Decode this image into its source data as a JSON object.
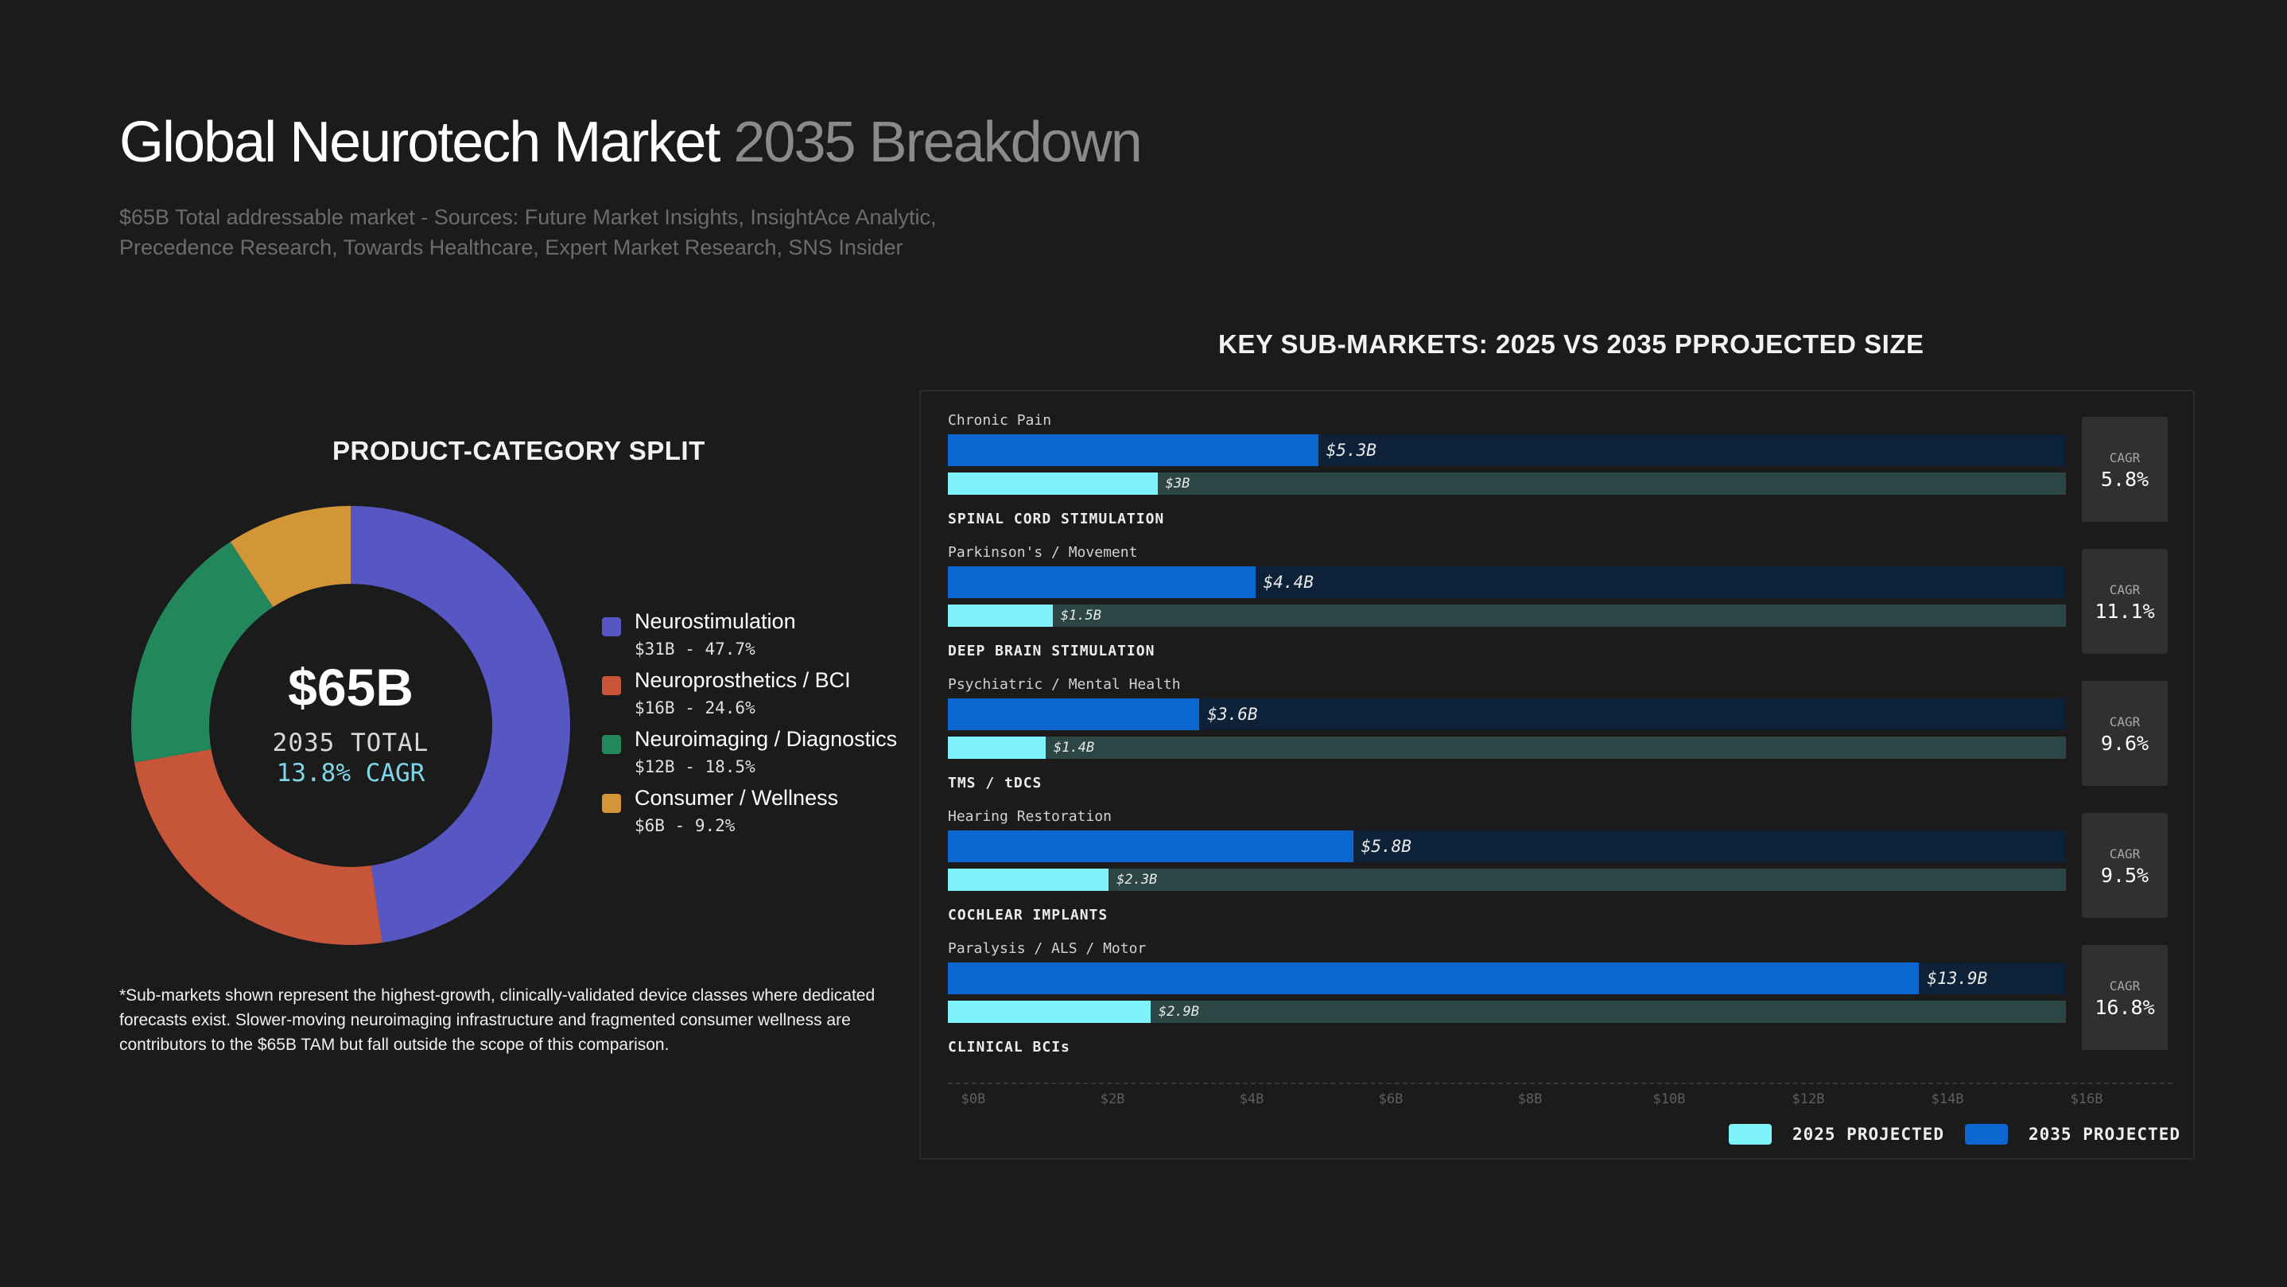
{
  "header": {
    "title_main": "Global Neurotech Market",
    "title_sub": "2035 Breakdown",
    "subtitle": "$65B Total addressable market - Sources: Future Market Insights, InsightAce Analytic, Precedence Research, Towards Healthcare, Expert Market Research, SNS Insider"
  },
  "split": {
    "heading": "PRODUCT-CATEGORY SPLIT",
    "center_value": "$65B",
    "center_label": "2035 TOTAL",
    "center_cagr": "13.8% CAGR"
  },
  "bars": {
    "heading": "KEY SUB-MARKETS: 2025 VS 2035 PPROJECTED SIZE",
    "cagr_label": "CAGR"
  },
  "footnote": "*Sub-markets shown represent the highest-growth, clinically-validated device classes where dedicated forecasts exist. Slower-moving neuroimaging infrastructure and fragmented consumer wellness are contributors to the $65B TAM but fall outside the scope of this comparison.",
  "colors": {
    "neurostimulation": "#5757c4",
    "neuroprosthetics": "#c7553a",
    "neuroimaging": "#23875c",
    "consumer": "#d29538",
    "bar_2035": "#0b67cf",
    "bar_2025": "#7ef3fb",
    "cagr_text": "#7fd6ea"
  },
  "chart_data": [
    {
      "type": "pie",
      "title": "PRODUCT-CATEGORY SPLIT",
      "donut": true,
      "total_label": "$65B",
      "slices": [
        {
          "name": "Neurostimulation",
          "value": 31,
          "percent": 47.7,
          "value_label": "$31B - 47.7%",
          "color": "#5757c4"
        },
        {
          "name": "Neuroprosthetics / BCI",
          "value": 16,
          "percent": 24.6,
          "value_label": "$16B - 24.6%",
          "color": "#c7553a"
        },
        {
          "name": "Neuroimaging / Diagnostics",
          "value": 12,
          "percent": 18.5,
          "value_label": "$12B - 18.5%",
          "color": "#23875c"
        },
        {
          "name": "Consumer / Wellness",
          "value": 6,
          "percent": 9.2,
          "value_label": "$6B - 9.2%",
          "color": "#d29538"
        }
      ]
    },
    {
      "type": "bar",
      "orientation": "horizontal",
      "title": "KEY SUB-MARKETS: 2025 VS 2035 PPROJECTED SIZE",
      "xlim": [
        0,
        16
      ],
      "x_ticks": [
        "$0B",
        "$2B",
        "$4B",
        "$6B",
        "$8B",
        "$10B",
        "$12B",
        "$14B",
        "$16B"
      ],
      "legend": [
        {
          "name": "2025 PROJECTED",
          "color": "#7ef3fb"
        },
        {
          "name": "2035 PROJECTED",
          "color": "#0b67cf"
        }
      ],
      "rows": [
        {
          "indication": "Chronic Pain",
          "category": "SPINAL CORD STIMULATION",
          "v2035": 5.3,
          "v2035_label": "$5.3B",
          "v2025": 3,
          "v2025_label": "$3B",
          "cagr": "5.8%"
        },
        {
          "indication": "Parkinson's / Movement",
          "category": "DEEP BRAIN STIMULATION",
          "v2035": 4.4,
          "v2035_label": "$4.4B",
          "v2025": 1.5,
          "v2025_label": "$1.5B",
          "cagr": "11.1%"
        },
        {
          "indication": "Psychiatric / Mental Health",
          "category": "TMS / tDCS",
          "v2035": 3.6,
          "v2035_label": "$3.6B",
          "v2025": 1.4,
          "v2025_label": "$1.4B",
          "cagr": "9.6%"
        },
        {
          "indication": "Hearing Restoration",
          "category": "COCHLEAR IMPLANTS",
          "v2035": 5.8,
          "v2035_label": "$5.8B",
          "v2025": 2.3,
          "v2025_label": "$2.3B",
          "cagr": "9.5%"
        },
        {
          "indication": "Paralysis / ALS / Motor",
          "category": "CLINICAL BCIs",
          "v2035": 13.9,
          "v2035_label": "$13.9B",
          "v2025": 2.9,
          "v2025_label": "$2.9B",
          "cagr": "16.8%"
        }
      ]
    }
  ]
}
